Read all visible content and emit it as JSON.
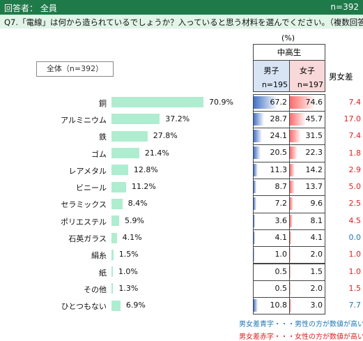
{
  "header": {
    "respondents": "回答者： 全員",
    "n": "n=392"
  },
  "question": "Q7.「電線」は何から造られているでしょうか？入っていると思う材料を選んでください。（複数回答）",
  "table_header": {
    "unit": "(%)",
    "group": "中高生",
    "male": "男子",
    "female": "女子",
    "male_n": "n=195",
    "female_n": "n=197",
    "diff": "男女差"
  },
  "overall_label": "全体（n=392）",
  "notes": {
    "blue": "男女差青字・・・男性の方が数値が高い",
    "red": "男女差赤字・・・女性の方が数値が高い"
  },
  "colors": {
    "bar": "#aeedcf",
    "male_bar": "#4472c4",
    "female_bar": "#ff6b6b",
    "diff_red": "#e02020",
    "diff_blue": "#1f77b4",
    "header": "#1f7a4a"
  },
  "chart_data": {
    "type": "bar",
    "categories": [
      "銅",
      "アルミニウム",
      "鉄",
      "ゴム",
      "レアメタル",
      "ビニール",
      "セラミックス",
      "ポリエステル",
      "石英ガラス",
      "絹糸",
      "紙",
      "その他",
      "ひとつもない"
    ],
    "series": [
      {
        "name": "全体（n=392）",
        "values": [
          70.9,
          37.2,
          27.8,
          21.4,
          12.8,
          11.2,
          8.4,
          5.9,
          4.1,
          1.5,
          1.0,
          1.3,
          6.9
        ],
        "labels": [
          "70.9%",
          "37.2%",
          "27.8%",
          "21.4%",
          "12.8%",
          "11.2%",
          "8.4%",
          "5.9%",
          "4.1%",
          "1.5%",
          "1.0%",
          "1.3%",
          "6.9%"
        ]
      },
      {
        "name": "男子",
        "values": [
          67.2,
          28.7,
          24.1,
          20.5,
          11.3,
          8.7,
          7.2,
          3.6,
          4.1,
          1.0,
          0.5,
          0.5,
          10.8
        ],
        "labels": [
          "67.2",
          "28.7",
          "24.1",
          "20.5",
          "11.3",
          "8.7",
          "7.2",
          "3.6",
          "4.1",
          "1.0",
          "0.5",
          "0.5",
          "10.8"
        ]
      },
      {
        "name": "女子",
        "values": [
          74.6,
          45.7,
          31.5,
          22.3,
          14.2,
          13.7,
          9.6,
          8.1,
          4.1,
          2.0,
          1.5,
          2.0,
          3.0
        ],
        "labels": [
          "74.6",
          "45.7",
          "31.5",
          "22.3",
          "14.2",
          "13.7",
          "9.6",
          "8.1",
          "4.1",
          "2.0",
          "1.5",
          "2.0",
          "3.0"
        ]
      },
      {
        "name": "男女差",
        "values": [
          7.4,
          17.0,
          7.4,
          1.8,
          2.9,
          5.0,
          2.5,
          4.5,
          0.0,
          1.0,
          1.0,
          1.5,
          7.7
        ],
        "labels": [
          "7.4",
          "17.0",
          "7.4",
          "1.8",
          "2.9",
          "5.0",
          "2.5",
          "4.5",
          "0.0",
          "1.0",
          "1.0",
          "1.5",
          "7.7"
        ],
        "color": [
          "red",
          "red",
          "red",
          "red",
          "red",
          "red",
          "red",
          "red",
          "blue",
          "red",
          "red",
          "red",
          "blue"
        ]
      }
    ]
  }
}
